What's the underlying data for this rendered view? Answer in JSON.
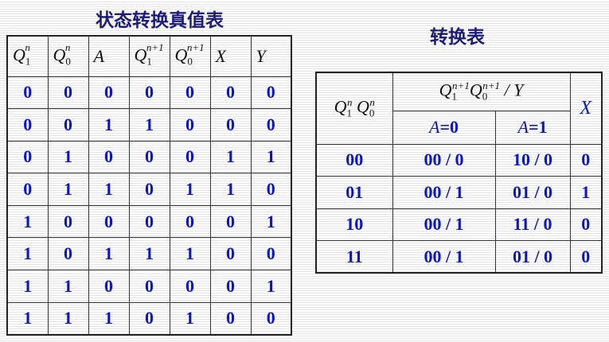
{
  "left": {
    "title": "状态转换真值表",
    "headers": [
      {
        "base": "Q",
        "sub": "1",
        "sup": "n"
      },
      {
        "base": "Q",
        "sub": "0",
        "sup": "n"
      },
      {
        "base": "A",
        "sub": "",
        "sup": ""
      },
      {
        "base": "Q",
        "sub": "1",
        "sup": "n+1"
      },
      {
        "base": "Q",
        "sub": "0",
        "sup": "n+1"
      },
      {
        "base": "X",
        "sub": "",
        "sup": ""
      },
      {
        "base": "Y",
        "sub": "",
        "sup": ""
      }
    ],
    "rows": [
      [
        "0",
        "0",
        "0",
        "0",
        "0",
        "0",
        "0"
      ],
      [
        "0",
        "0",
        "1",
        "1",
        "0",
        "0",
        "0"
      ],
      [
        "0",
        "1",
        "0",
        "0",
        "0",
        "1",
        "1"
      ],
      [
        "0",
        "1",
        "1",
        "0",
        "1",
        "1",
        "0"
      ],
      [
        "1",
        "0",
        "0",
        "0",
        "0",
        "0",
        "1"
      ],
      [
        "1",
        "0",
        "1",
        "1",
        "1",
        "0",
        "0"
      ],
      [
        "1",
        "1",
        "0",
        "0",
        "0",
        "0",
        "1"
      ],
      [
        "1",
        "1",
        "1",
        "0",
        "1",
        "0",
        "0"
      ]
    ]
  },
  "right": {
    "title": "转换表",
    "state_header": {
      "q": "Q",
      "s1": "1",
      "s0": "0",
      "n": "n"
    },
    "next_header": {
      "q": "Q",
      "s1": "1",
      "s0": "0",
      "n1": "n+1",
      "slash_y": " / Y"
    },
    "x_header": "X",
    "a0": {
      "var": "A",
      "val": "=0"
    },
    "a1": {
      "var": "A",
      "val": "=1"
    },
    "rows": [
      [
        "00",
        "00 / 0",
        "10 / 0",
        "0"
      ],
      [
        "01",
        "00 / 1",
        "01 / 0",
        "1"
      ],
      [
        "10",
        "00 / 1",
        "11 / 0",
        "0"
      ],
      [
        "11",
        "00 / 1",
        "01 / 0",
        "0"
      ]
    ]
  }
}
